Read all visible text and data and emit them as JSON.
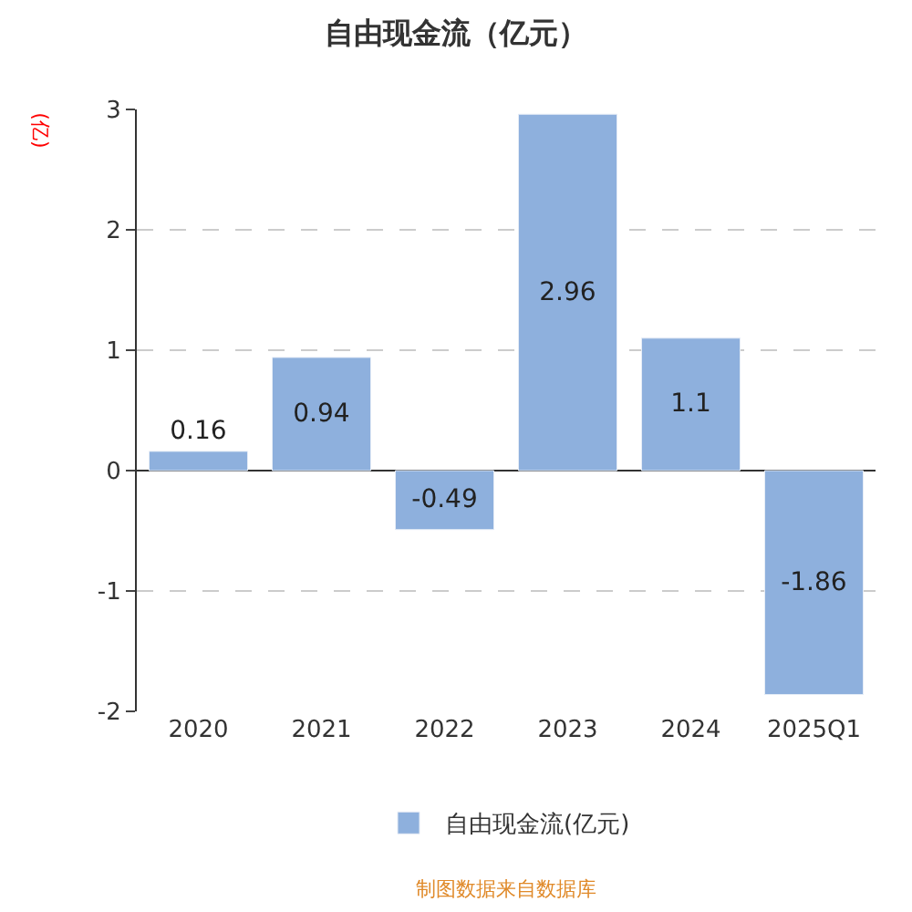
{
  "chart_data": {
    "type": "bar",
    "title": "自由现金流（亿元）",
    "ylabel": "(亿)",
    "categories": [
      "2020",
      "2021",
      "2022",
      "2023",
      "2024",
      "2025Q1"
    ],
    "series": [
      {
        "name": "自由现金流(亿元)",
        "color": "#8eb0dd",
        "values": [
          0.16,
          0.94,
          -0.49,
          2.96,
          1.1,
          -1.86
        ]
      }
    ],
    "ylim": [
      -2,
      3
    ],
    "yticks": [
      -2,
      -1,
      0,
      1,
      2,
      3
    ],
    "grid": "y",
    "legend": "bottom",
    "data_labels": true,
    "annotations": [
      "制图数据来自数据库"
    ]
  }
}
